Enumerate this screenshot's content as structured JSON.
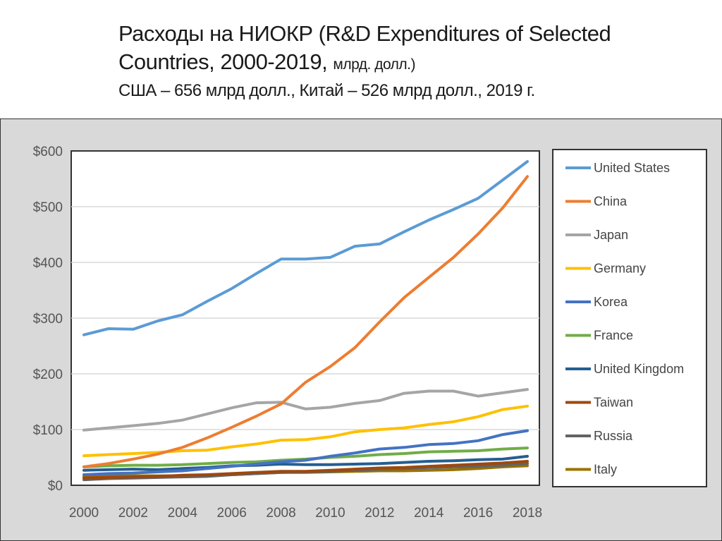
{
  "slide": {
    "title_main": "Расходы на НИОКР (R&D Expenditures of Selected Countries, 2000-2019,",
    "title_unit": "млрд. долл.)",
    "subtitle": "США – 656 млрд долл., Китай – 526 млрд долл., 2019 г."
  },
  "chart_data": {
    "type": "line",
    "x": [
      2000,
      2001,
      2002,
      2003,
      2004,
      2005,
      2006,
      2007,
      2008,
      2009,
      2010,
      2011,
      2012,
      2013,
      2014,
      2015,
      2016,
      2017,
      2018
    ],
    "x_tick_labels": [
      "2000",
      "2002",
      "2004",
      "2006",
      "2008",
      "2010",
      "2012",
      "2014",
      "2016",
      "2018"
    ],
    "y_tick_labels": [
      "$0",
      "$100",
      "$200",
      "$300",
      "$400",
      "$500",
      "$600"
    ],
    "ylim": [
      0,
      600
    ],
    "grid": "horizontal",
    "legend_position": "right",
    "series": [
      {
        "name": "United States",
        "color": "#5b9bd5",
        "values": [
          270,
          281,
          280,
          295,
          306,
          330,
          353,
          380,
          406,
          406,
          409,
          429,
          433,
          455,
          476,
          495,
          515,
          548,
          581
        ]
      },
      {
        "name": "China",
        "color": "#ed7d31",
        "values": [
          33,
          39,
          47,
          56,
          68,
          85,
          104,
          124,
          146,
          185,
          213,
          247,
          293,
          337,
          373,
          409,
          451,
          498,
          554
        ]
      },
      {
        "name": "Japan",
        "color": "#a5a5a5",
        "values": [
          99,
          103,
          107,
          111,
          117,
          128,
          139,
          148,
          149,
          137,
          140,
          147,
          152,
          165,
          169,
          169,
          160,
          166,
          172
        ]
      },
      {
        "name": "Germany",
        "color": "#ffc000",
        "values": [
          53,
          55,
          57,
          59,
          62,
          63,
          69,
          74,
          81,
          82,
          87,
          96,
          100,
          103,
          109,
          114,
          123,
          136,
          142
        ]
      },
      {
        "name": "Korea",
        "color": "#4472c4",
        "values": [
          19,
          21,
          22,
          24,
          26,
          30,
          34,
          38,
          42,
          45,
          52,
          58,
          65,
          68,
          73,
          75,
          80,
          91,
          98
        ]
      },
      {
        "name": "France",
        "color": "#70ad47",
        "values": [
          33,
          35,
          36,
          36,
          37,
          39,
          41,
          42,
          45,
          47,
          50,
          52,
          55,
          57,
          60,
          61,
          62,
          65,
          67
        ]
      },
      {
        "name": "United Kingdom",
        "color": "#255e91",
        "values": [
          27,
          28,
          29,
          28,
          30,
          32,
          35,
          36,
          38,
          37,
          37,
          38,
          39,
          41,
          43,
          44,
          46,
          47,
          52
        ]
      },
      {
        "name": "Taiwan",
        "color": "#9e480e",
        "values": [
          13,
          14,
          15,
          16,
          18,
          19,
          21,
          23,
          25,
          25,
          27,
          29,
          31,
          32,
          34,
          36,
          38,
          40,
          43
        ]
      },
      {
        "name": "Russia",
        "color": "#636363",
        "values": [
          10,
          12,
          13,
          14,
          15,
          16,
          19,
          21,
          23,
          24,
          25,
          27,
          29,
          30,
          32,
          33,
          34,
          36,
          39
        ]
      },
      {
        "name": "Italy",
        "color": "#997300",
        "values": [
          16,
          17,
          17,
          17,
          17,
          18,
          19,
          21,
          23,
          23,
          24,
          25,
          26,
          26,
          27,
          28,
          30,
          33,
          35
        ]
      }
    ]
  }
}
